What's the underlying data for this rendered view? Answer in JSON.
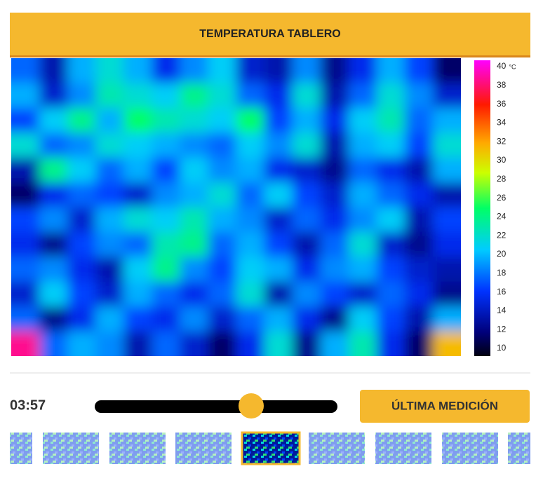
{
  "header": {
    "title": "TEMPERATURA TABLERO"
  },
  "chart_data": {
    "type": "heatmap",
    "values": [
      [
        18,
        14,
        20,
        22,
        20,
        16,
        19,
        21,
        15,
        14,
        19,
        13,
        16,
        20,
        17,
        12
      ],
      [
        20,
        15,
        19,
        23,
        22,
        21,
        24,
        22,
        18,
        16,
        22,
        14,
        18,
        22,
        19,
        15
      ],
      [
        17,
        21,
        24,
        20,
        25,
        23,
        22,
        21,
        25,
        17,
        20,
        16,
        21,
        23,
        18,
        20
      ],
      [
        22,
        18,
        19,
        22,
        21,
        20,
        19,
        18,
        21,
        19,
        22,
        14,
        20,
        21,
        17,
        22
      ],
      [
        14,
        24,
        21,
        18,
        20,
        17,
        21,
        19,
        20,
        16,
        15,
        13,
        18,
        16,
        14,
        20
      ],
      [
        12,
        16,
        18,
        17,
        15,
        19,
        20,
        22,
        18,
        21,
        17,
        15,
        20,
        18,
        16,
        14
      ],
      [
        17,
        19,
        15,
        20,
        22,
        21,
        23,
        20,
        19,
        15,
        18,
        16,
        19,
        21,
        14,
        17
      ],
      [
        16,
        13,
        17,
        19,
        18,
        23,
        24,
        18,
        20,
        17,
        14,
        18,
        22,
        15,
        13,
        16
      ],
      [
        18,
        19,
        16,
        14,
        21,
        24,
        19,
        17,
        21,
        20,
        16,
        19,
        20,
        17,
        15,
        14
      ],
      [
        15,
        21,
        17,
        15,
        20,
        18,
        16,
        18,
        22,
        14,
        19,
        17,
        15,
        18,
        16,
        13
      ],
      [
        18,
        13,
        16,
        20,
        17,
        16,
        19,
        15,
        18,
        20,
        16,
        13,
        21,
        17,
        14,
        20
      ],
      [
        38,
        18,
        20,
        19,
        14,
        18,
        15,
        12,
        16,
        22,
        13,
        20,
        23,
        16,
        12,
        31
      ]
    ],
    "zlim": [
      10,
      40
    ],
    "zticks": [
      10,
      12,
      14,
      16,
      18,
      20,
      22,
      24,
      26,
      28,
      30,
      32,
      34,
      36,
      38,
      40
    ],
    "unit": "°C"
  },
  "player": {
    "time": "03:57",
    "button": "ÚLTIMA MEDICIÓN"
  }
}
